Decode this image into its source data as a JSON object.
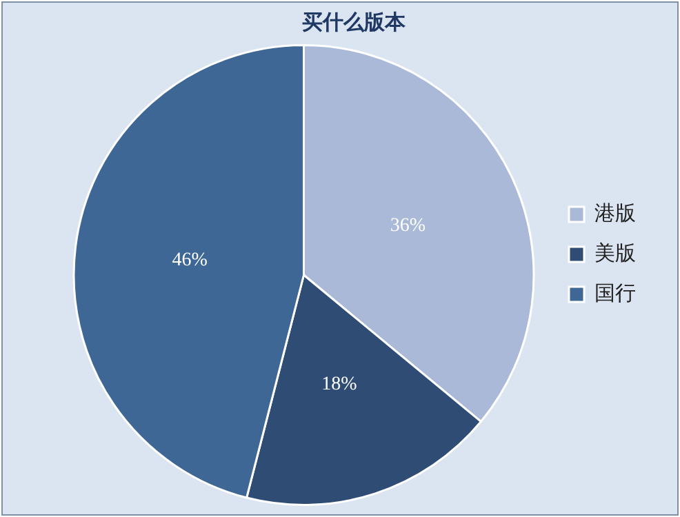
{
  "chart_data": {
    "type": "pie",
    "title": "买什么版本",
    "categories": [
      "港版",
      "美版",
      "国行"
    ],
    "values": [
      36,
      18,
      46
    ],
    "colors": [
      "#a9b9d7",
      "#2f4d74",
      "#3e6796"
    ],
    "data_labels": true,
    "value_labels": [
      "36%",
      "18%",
      "46%"
    ],
    "legend": "right"
  }
}
